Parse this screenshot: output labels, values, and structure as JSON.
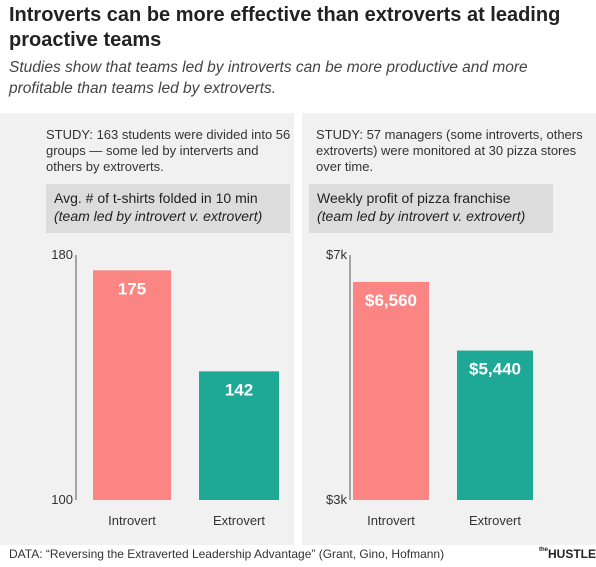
{
  "title": "Introverts can be more effective than extroverts at leading proactive teams",
  "subtitle": "Studies show that teams led by introverts can be more productive and more profitable than teams led by extroverts.",
  "footer": "DATA: “Reversing the Extraverted Leadership Advantage” (Grant, Gino, Hofmann)",
  "logo": {
    "the": "the",
    "name": "HUSTLE"
  },
  "colors": {
    "introvert": "#fa8583",
    "extrovert": "#1ea896",
    "panel": "#f1f1f1",
    "metric_box": "#dcdcdc"
  },
  "chart_data": [
    {
      "type": "bar",
      "study": "STUDY: 163 students were divided into 56 groups — some led by interverts and others by extroverts.",
      "metric": "Avg. # of t-shirts folded in 10 min",
      "metric_sub": "(team led by introvert v. extrovert)",
      "categories": [
        "Introvert",
        "Extrovert"
      ],
      "values": [
        175,
        142
      ],
      "value_labels": [
        "175",
        "142"
      ],
      "ylim": [
        100,
        180
      ],
      "ytick_labels": [
        "100",
        "180"
      ],
      "grid": false,
      "legend": "none"
    },
    {
      "type": "bar",
      "study": "STUDY: 57 managers (some introverts, others extroverts) were monitored at 30 pizza stores over time.",
      "metric": "Weekly profit of pizza franchise",
      "metric_sub": "(team led by introvert v. extrovert)",
      "categories": [
        "Introvert",
        "Extrovert"
      ],
      "values": [
        6560,
        5440
      ],
      "value_labels": [
        "$6,560",
        "$5,440"
      ],
      "ylim": [
        3000,
        7000
      ],
      "ytick_labels": [
        "$3k",
        "$7k"
      ],
      "grid": false,
      "legend": "none"
    }
  ]
}
